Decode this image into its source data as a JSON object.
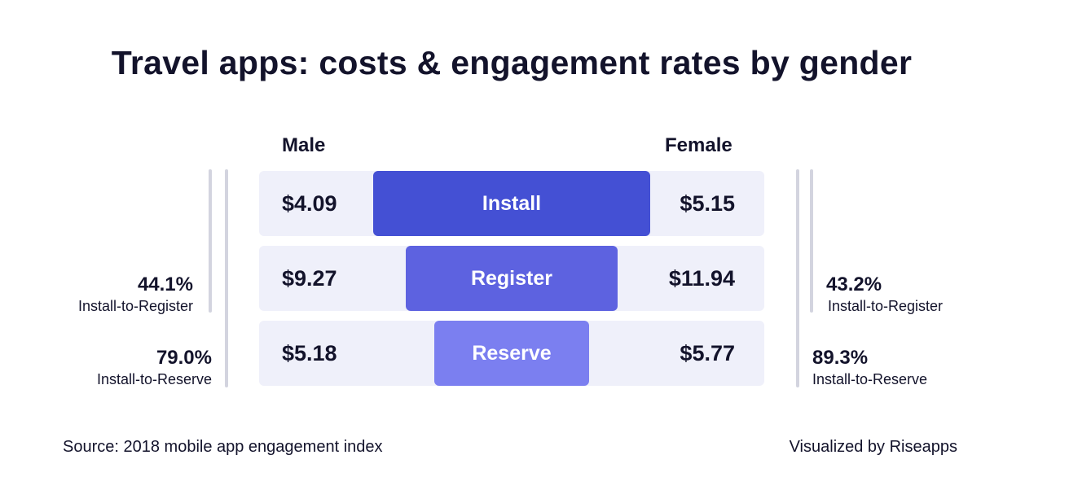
{
  "title": "Travel apps: costs & engagement rates by gender",
  "chart_data": {
    "type": "bar",
    "title": "Travel apps: costs & engagement rates by gender",
    "series_labels": {
      "male": "Male",
      "female": "Female"
    },
    "categories": [
      "Install",
      "Register",
      "Reserve"
    ],
    "cost_labels": {
      "male": [
        "$4.09",
        "$9.27",
        "$5.18"
      ],
      "female": [
        "$5.15",
        "$11.94",
        "$5.77"
      ]
    },
    "male_cost": [
      4.09,
      9.27,
      5.18
    ],
    "female_cost": [
      5.15,
      11.94,
      5.77
    ],
    "funnel_width_relative": [
      1.0,
      0.765,
      0.559
    ],
    "rates": {
      "male": [
        {
          "value": "44.1%",
          "label": "Install-to-Register"
        },
        {
          "value": "79.0%",
          "label": "Install-to-Reserve"
        }
      ],
      "female": [
        {
          "value": "43.2%",
          "label": "Install-to-Register"
        },
        {
          "value": "89.3%",
          "label": "Install-to-Reserve"
        }
      ]
    },
    "colors": [
      "#4450d4",
      "#5d62e0",
      "#7b7ff0"
    ],
    "row_background": "#eff0fa"
  },
  "source": "Source: 2018 mobile app engagement index",
  "credit": "Visualized by Riseapps"
}
